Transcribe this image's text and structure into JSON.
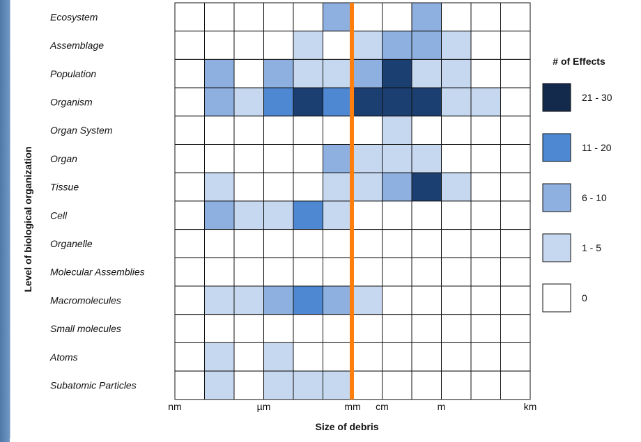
{
  "chart_data": {
    "type": "heatmap",
    "xlabel": "Size of debris",
    "ylabel": "Level of biological organization",
    "x_tick_labels": [
      {
        "label": "nm",
        "col": 0
      },
      {
        "label": "µm",
        "col": 3
      },
      {
        "label": "mm",
        "col": 6
      },
      {
        "label": "cm",
        "col": 7
      },
      {
        "label": "m",
        "col": 9
      },
      {
        "label": "km",
        "col": 12
      }
    ],
    "columns": 12,
    "rows": [
      "Ecosystem",
      "Assemblage",
      "Population",
      "Organism",
      "Organ System",
      "Organ",
      "Tissue",
      "Cell",
      "Organelle",
      "Molecular Assemblies",
      "Macromolecules",
      "Small molecules",
      "Atoms",
      "Subatomic Particles"
    ],
    "matrix": [
      [
        0,
        0,
        0,
        0,
        0,
        2,
        0,
        0,
        2,
        0,
        0,
        0
      ],
      [
        0,
        0,
        0,
        0,
        1,
        0,
        1,
        2,
        2,
        1,
        0,
        0
      ],
      [
        0,
        2,
        0,
        2,
        1,
        1,
        2,
        4,
        1,
        1,
        0,
        0
      ],
      [
        0,
        2,
        1,
        3,
        4,
        3,
        4,
        4,
        4,
        1,
        1,
        0
      ],
      [
        0,
        0,
        0,
        0,
        0,
        0,
        0,
        1,
        0,
        0,
        0,
        0
      ],
      [
        0,
        0,
        0,
        0,
        0,
        2,
        1,
        1,
        1,
        0,
        0,
        0
      ],
      [
        0,
        1,
        0,
        0,
        0,
        1,
        1,
        2,
        4,
        1,
        0,
        0
      ],
      [
        0,
        2,
        1,
        1,
        3,
        1,
        0,
        0,
        0,
        0,
        0,
        0
      ],
      [
        0,
        0,
        0,
        0,
        0,
        0,
        0,
        0,
        0,
        0,
        0,
        0
      ],
      [
        0,
        0,
        0,
        0,
        0,
        0,
        0,
        0,
        0,
        0,
        0,
        0
      ],
      [
        0,
        1,
        1,
        2,
        3,
        2,
        1,
        0,
        0,
        0,
        0,
        0
      ],
      [
        0,
        0,
        0,
        0,
        0,
        0,
        0,
        0,
        0,
        0,
        0,
        0
      ],
      [
        0,
        1,
        0,
        1,
        0,
        0,
        0,
        0,
        0,
        0,
        0,
        0
      ],
      [
        0,
        1,
        0,
        1,
        1,
        1,
        0,
        0,
        0,
        0,
        0,
        0
      ]
    ],
    "legend": {
      "title": "# of Effects",
      "placement": "right",
      "entries": [
        {
          "label": "21 - 30",
          "level": 4
        },
        {
          "label": "11 - 20",
          "level": 3
        },
        {
          "label": "6 - 10",
          "level": 2
        },
        {
          "label": "1 - 5",
          "level": 1
        },
        {
          "label": "0",
          "level": 0
        }
      ]
    },
    "level_colors": [
      "#ffffff",
      "#c6d8f0",
      "#8eb0e0",
      "#4f88d2",
      "#1c3f72"
    ],
    "legend_swatch_colors": [
      "#ffffff",
      "#c6d8f0",
      "#8eb0e0",
      "#4f88d2",
      "#142a4c"
    ],
    "reference_line": {
      "color": "#ff7f0e",
      "between": "mm and cm"
    }
  }
}
